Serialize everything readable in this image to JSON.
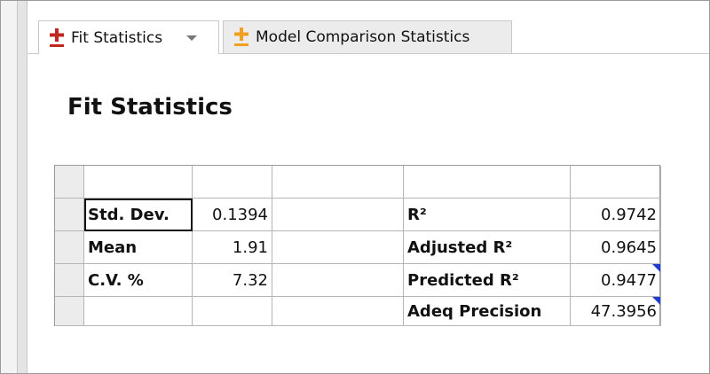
{
  "tabs": [
    {
      "label": "Fit Statistics"
    },
    {
      "label": "Model Comparison Statistics"
    }
  ],
  "heading": "Fit Statistics",
  "table": {
    "rows": [
      {
        "label": "Std. Dev.",
        "value": "0.1394",
        "stat": "R²",
        "stat_value": "0.9742"
      },
      {
        "label": "Mean",
        "value": "1.91",
        "stat": "Adjusted R²",
        "stat_value": "0.9645"
      },
      {
        "label": "C.V. %",
        "value": "7.32",
        "stat": "Predicted R²",
        "stat_value": "0.9477"
      },
      {
        "stat": "Adeq Precision",
        "stat_value": "47.3956"
      }
    ]
  }
}
